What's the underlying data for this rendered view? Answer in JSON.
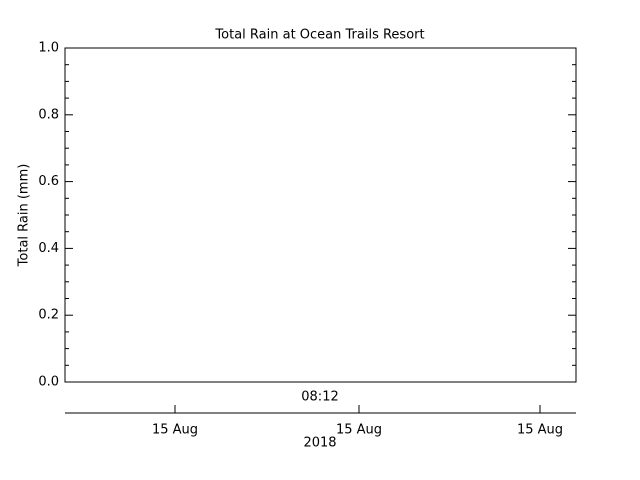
{
  "chart_data": {
    "type": "line",
    "title": "Total Rain at Ocean Trails Resort",
    "ylabel": "Total Rain (mm)",
    "ylim": [
      0,
      1
    ],
    "yticks": [
      {
        "value": 0,
        "label": "0.0"
      },
      0.2,
      0.4,
      0.6,
      0.8,
      {
        "value": 1,
        "label": "1.0"
      }
    ],
    "yminorticks": [
      0.05,
      0.1,
      0.15,
      0.25,
      0.3,
      0.35,
      0.45,
      0.5,
      0.55,
      0.65,
      0.7,
      0.75,
      0.85,
      0.9,
      0.95
    ],
    "time_label": "08:12",
    "date_ticks": [
      "15 Aug",
      "15 Aug",
      "15 Aug"
    ],
    "year_label": "2018",
    "series": []
  }
}
